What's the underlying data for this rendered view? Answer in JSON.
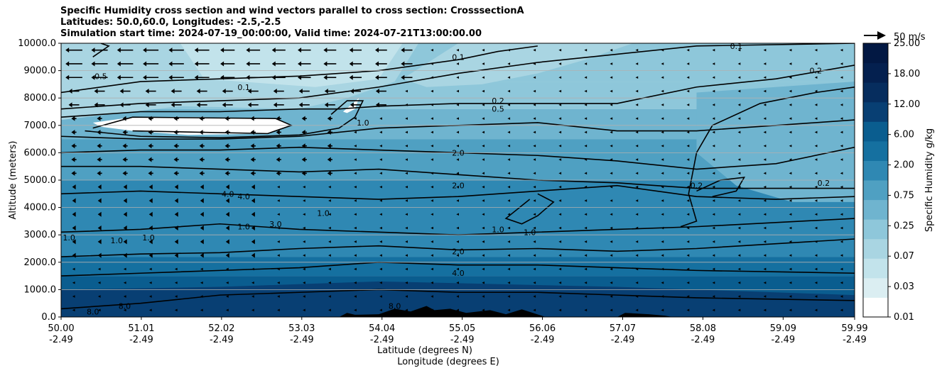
{
  "title_lines": [
    "Specific Humidity cross section and wind vectors parallel to cross section: CrosssectionA",
    "Latitudes: 50.0,60.0, Longitudes: -2.5,-2.5",
    "Simulation start time: 2024-07-19_00:00:00, Valid time: 2024-07-21T13:00:00.00"
  ],
  "chart_data": {
    "type": "heatmap",
    "subtype": "filled-contour cross section with wind vectors",
    "ylabel": "Altitude (meters)",
    "xlabel_lines": [
      "Latitude (degrees N)",
      "Longitude (degrees E)"
    ],
    "xlim": [
      50.0,
      59.99
    ],
    "ylim": [
      0,
      10000
    ],
    "grid": "horizontal",
    "x_ticks": [
      {
        "lat": "50.00",
        "lon": "-2.49",
        "value": 50.0
      },
      {
        "lat": "51.01",
        "lon": "-2.49",
        "value": 51.01
      },
      {
        "lat": "52.02",
        "lon": "-2.49",
        "value": 52.02
      },
      {
        "lat": "53.03",
        "lon": "-2.49",
        "value": 53.03
      },
      {
        "lat": "54.04",
        "lon": "-2.49",
        "value": 54.04
      },
      {
        "lat": "55.05",
        "lon": "-2.49",
        "value": 55.05
      },
      {
        "lat": "56.06",
        "lon": "-2.49",
        "value": 56.06
      },
      {
        "lat": "57.07",
        "lon": "-2.49",
        "value": 57.07
      },
      {
        "lat": "58.08",
        "lon": "-2.49",
        "value": 58.08
      },
      {
        "lat": "59.09",
        "lon": "-2.49",
        "value": 59.09
      },
      {
        "lat": "59.99",
        "lon": "-2.49",
        "value": 59.99
      }
    ],
    "y_ticks": [
      {
        "label": "0.0",
        "value": 0
      },
      {
        "label": "1000.0",
        "value": 1000
      },
      {
        "label": "2000.0",
        "value": 2000
      },
      {
        "label": "3000.0",
        "value": 3000
      },
      {
        "label": "4000.0",
        "value": 4000
      },
      {
        "label": "5000.0",
        "value": 5000
      },
      {
        "label": "6000.0",
        "value": 6000
      },
      {
        "label": "7000.0",
        "value": 7000
      },
      {
        "label": "8000.0",
        "value": 8000
      },
      {
        "label": "9000.0",
        "value": 9000
      },
      {
        "label": "10000.0",
        "value": 10000
      }
    ],
    "colorbar": {
      "label": "Specific Humidity g/kg",
      "levels": [
        "0.01",
        "0.03",
        "0.07",
        "0.25",
        "0.75",
        "2.00",
        "6.00",
        "12.00",
        "18.00",
        "25.00"
      ],
      "labeled_levels": [
        "0.01",
        "0.03",
        "0.07",
        "0.25",
        "0.75",
        "2.00",
        "6.00",
        "12.00",
        "18.00",
        "25.00"
      ],
      "colors": [
        "#ffffff",
        "#dbeef2",
        "#c2e3eb",
        "#a9d5e2",
        "#8ec7da",
        "#6fb4cf",
        "#4fa0c2",
        "#2f88b3",
        "#1570a0",
        "#0a5d8f",
        "#083f73",
        "#062d5e",
        "#04204f",
        "#021843"
      ]
    },
    "wind_key": {
      "label": "50 m/s",
      "speed": 50
    },
    "contour_labels": [
      {
        "text": "0.1",
        "x": 55.0,
        "y": 9500
      },
      {
        "text": "0.1",
        "x": 52.3,
        "y": 8400
      },
      {
        "text": "0.1",
        "x": 58.5,
        "y": 9900
      },
      {
        "text": "0.2",
        "x": 59.5,
        "y": 9000
      },
      {
        "text": "0.5",
        "x": 50.5,
        "y": 8800
      },
      {
        "text": "0.2",
        "x": 55.5,
        "y": 7900
      },
      {
        "text": "0.5",
        "x": 55.5,
        "y": 7600
      },
      {
        "text": "1.0",
        "x": 53.8,
        "y": 7100
      },
      {
        "text": "2.0",
        "x": 55.0,
        "y": 6000
      },
      {
        "text": "2.0",
        "x": 55.0,
        "y": 4800
      },
      {
        "text": "4.0",
        "x": 52.1,
        "y": 4500
      },
      {
        "text": "4.0",
        "x": 52.3,
        "y": 4400
      },
      {
        "text": "1.0",
        "x": 53.3,
        "y": 3800
      },
      {
        "text": "1.0",
        "x": 52.3,
        "y": 3300
      },
      {
        "text": "3.0",
        "x": 52.7,
        "y": 3400
      },
      {
        "text": "1.0",
        "x": 50.1,
        "y": 2900
      },
      {
        "text": "1.0",
        "x": 50.7,
        "y": 2800
      },
      {
        "text": "1.0",
        "x": 51.1,
        "y": 2900
      },
      {
        "text": "1.0",
        "x": 55.5,
        "y": 3200
      },
      {
        "text": "1.0",
        "x": 55.9,
        "y": 3100
      },
      {
        "text": "0.2",
        "x": 58.0,
        "y": 4800
      },
      {
        "text": "0.2",
        "x": 59.6,
        "y": 4900
      },
      {
        "text": "2.0",
        "x": 55.0,
        "y": 2400
      },
      {
        "text": "4.0",
        "x": 55.0,
        "y": 1600
      },
      {
        "text": "8.0",
        "x": 50.4,
        "y": 200
      },
      {
        "text": "8.0",
        "x": 50.8,
        "y": 400
      },
      {
        "text": "8.0",
        "x": 54.2,
        "y": 400
      }
    ],
    "terrain": [
      [
        53.5,
        0
      ],
      [
        53.6,
        150
      ],
      [
        53.7,
        80
      ],
      [
        54.0,
        100
      ],
      [
        54.2,
        300
      ],
      [
        54.4,
        200
      ],
      [
        54.6,
        400
      ],
      [
        54.7,
        250
      ],
      [
        54.9,
        300
      ],
      [
        55.1,
        150
      ],
      [
        55.4,
        250
      ],
      [
        55.6,
        100
      ],
      [
        55.8,
        280
      ],
      [
        56.1,
        0
      ],
      [
        57.0,
        0
      ],
      [
        57.1,
        150
      ],
      [
        57.4,
        100
      ],
      [
        57.6,
        50
      ],
      [
        57.7,
        0
      ]
    ],
    "dry_regions": [
      {
        "x": [
          50.4,
          52.8
        ],
        "y": [
          6700,
          7300
        ]
      },
      {
        "x": [
          53.5,
          53.7
        ],
        "y": [
          7500,
          8000
        ]
      }
    ],
    "vector_columns": 31,
    "vector_rows": 20
  }
}
